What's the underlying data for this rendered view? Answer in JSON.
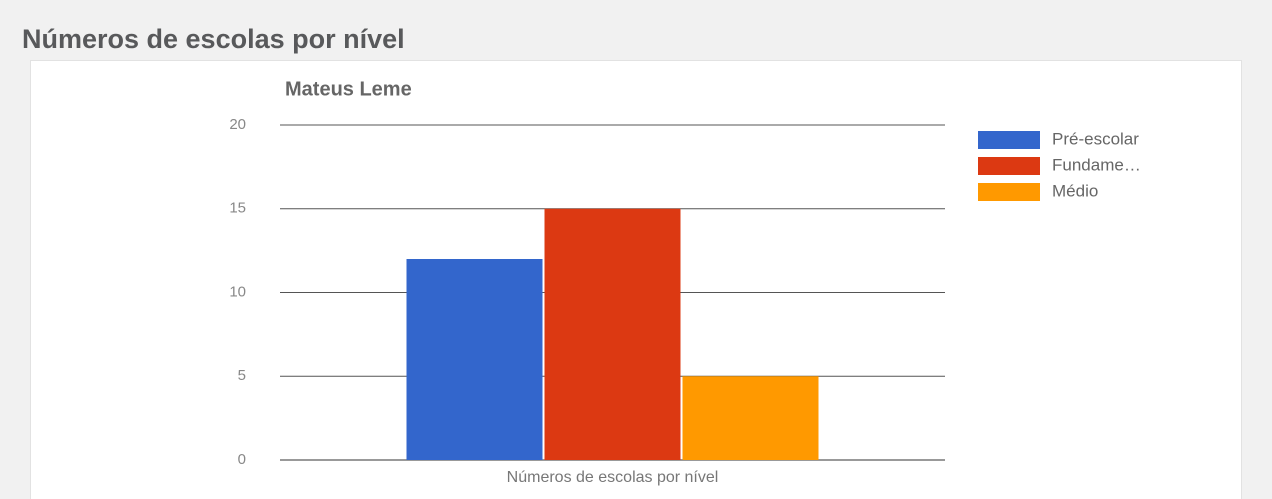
{
  "page_title": "Números de escolas por nível",
  "chart_data": {
    "type": "bar",
    "title": "Mateus Leme",
    "categories": [
      "Números de escolas por nível"
    ],
    "series": [
      {
        "name": "Pré-escolar",
        "color": "#3366cc",
        "values": [
          12
        ]
      },
      {
        "name": "Fundame…",
        "color": "#dc3912",
        "values": [
          15
        ]
      },
      {
        "name": "Médio",
        "color": "#ff9900",
        "values": [
          5
        ]
      }
    ],
    "ylim": [
      0,
      20
    ],
    "yticks": [
      0,
      5,
      10,
      15,
      20
    ],
    "grid": true,
    "legend": "right"
  }
}
